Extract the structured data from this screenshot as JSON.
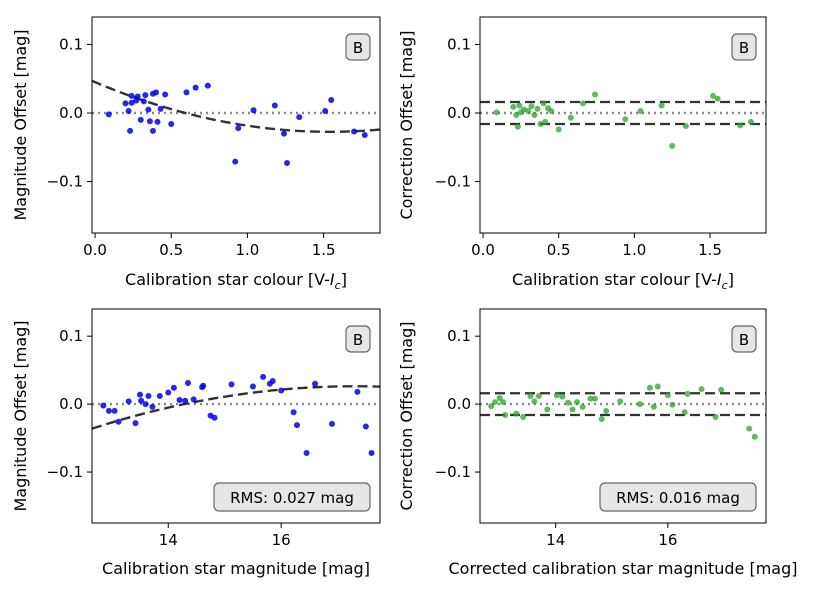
{
  "chart_data": [
    {
      "type": "scatter",
      "panel": "top-left",
      "badge": "B",
      "xlabel": "Calibration star colour [V-",
      "xlabel_italic": "I",
      "xlabel_sub": "c",
      "xlabel_close": "]",
      "ylabel": "Magnitude Offset [mag]",
      "xlim": [
        -0.02,
        1.87
      ],
      "ylim": [
        -0.175,
        0.14
      ],
      "xticks": [
        0.0,
        0.5,
        1.0,
        1.5
      ],
      "xtick_labels": [
        "0.0",
        "0.5",
        "1.0",
        "1.5"
      ],
      "yticks": [
        0.1,
        0.0,
        -0.1
      ],
      "ytick_labels": [
        "0.1",
        "0.0",
        "−0.1"
      ],
      "point_color": "#0000ee",
      "x": [
        0.09,
        0.2,
        0.22,
        0.23,
        0.24,
        0.24,
        0.27,
        0.28,
        0.3,
        0.32,
        0.33,
        0.35,
        0.36,
        0.38,
        0.38,
        0.4,
        0.41,
        0.43,
        0.46,
        0.5,
        0.6,
        0.66,
        0.74,
        0.92,
        0.94,
        1.04,
        1.18,
        1.24,
        1.26,
        1.34,
        1.51,
        1.55,
        1.7,
        1.77
      ],
      "y": [
        -0.002,
        0.014,
        0.003,
        -0.026,
        0.025,
        0.015,
        0.018,
        0.024,
        -0.01,
        0.017,
        0.026,
        0.005,
        -0.012,
        -0.026,
        0.028,
        0.03,
        -0.013,
        0.006,
        0.027,
        -0.016,
        0.03,
        0.037,
        0.04,
        -0.071,
        -0.022,
        0.004,
        0.011,
        -0.03,
        -0.073,
        -0.006,
        0.003,
        0.019,
        -0.027,
        -0.032
      ],
      "fit_curve": {
        "coeffs": [
          0.045,
          -0.094,
          0.0305
        ],
        "color": "#333333",
        "style": "dashed"
      },
      "reference_lines": [
        {
          "y": 0.0,
          "color": "#888888",
          "style": "dotted"
        }
      ]
    },
    {
      "type": "scatter",
      "panel": "top-right",
      "badge": "B",
      "xlabel": "Calibration star colour [V-",
      "xlabel_italic": "I",
      "xlabel_sub": "c",
      "xlabel_close": "]",
      "ylabel": "Correction Offset [mag]",
      "xlim": [
        -0.02,
        1.87
      ],
      "ylim": [
        -0.175,
        0.14
      ],
      "xticks": [
        0.0,
        0.5,
        1.0,
        1.5
      ],
      "xtick_labels": [
        "0.0",
        "0.5",
        "1.0",
        "1.5"
      ],
      "yticks": [
        0.1,
        0.0,
        -0.1
      ],
      "ytick_labels": [
        "0.1",
        "0.0",
        "−0.1"
      ],
      "point_color": "#2ca02c",
      "x": [
        0.09,
        0.2,
        0.22,
        0.23,
        0.24,
        0.25,
        0.27,
        0.3,
        0.32,
        0.34,
        0.36,
        0.38,
        0.4,
        0.41,
        0.43,
        0.45,
        0.5,
        0.58,
        0.66,
        0.74,
        0.94,
        1.04,
        1.18,
        1.25,
        1.34,
        1.52,
        1.55,
        1.7,
        1.77
      ],
      "y": [
        0.001,
        0.009,
        -0.003,
        -0.02,
        0.011,
        0.001,
        0.005,
        0.003,
        0.01,
        -0.003,
        0.006,
        -0.016,
        0.014,
        -0.013,
        0.007,
        0.003,
        -0.024,
        -0.007,
        0.014,
        0.027,
        -0.009,
        0.003,
        0.011,
        -0.048,
        -0.019,
        0.025,
        0.021,
        -0.018,
        -0.013
      ],
      "reference_lines": [
        {
          "y": 0.0,
          "color": "#888888",
          "style": "dotted"
        },
        {
          "y": 0.016,
          "color": "#333333",
          "style": "dashed"
        },
        {
          "y": -0.016,
          "color": "#333333",
          "style": "dashed"
        }
      ]
    },
    {
      "type": "scatter",
      "panel": "bottom-left",
      "badge": "B",
      "rms_label": "RMS: 0.027 mag",
      "xlabel": "Calibration star magnitude [mag]",
      "ylabel": "Magnitude Offset [mag]",
      "xlim": [
        12.65,
        17.75
      ],
      "ylim": [
        -0.175,
        0.14
      ],
      "xticks": [
        14,
        16
      ],
      "xtick_labels": [
        "14",
        "16"
      ],
      "yticks": [
        0.1,
        0.0,
        -0.1
      ],
      "ytick_labels": [
        "0.1",
        "0.0",
        "−0.1"
      ],
      "point_color": "#0000ee",
      "x": [
        12.85,
        12.95,
        13.05,
        13.12,
        13.3,
        13.42,
        13.5,
        13.52,
        13.6,
        13.65,
        13.72,
        13.85,
        14.0,
        14.1,
        14.2,
        14.3,
        14.35,
        14.45,
        14.6,
        14.62,
        14.75,
        14.82,
        15.12,
        15.5,
        15.68,
        15.8,
        15.85,
        16.0,
        16.22,
        16.28,
        16.45,
        16.6,
        16.9,
        17.35,
        17.5,
        17.6
      ],
      "y": [
        -0.002,
        -0.01,
        -0.01,
        -0.026,
        0.004,
        -0.028,
        0.014,
        0.005,
        0.0,
        0.012,
        -0.004,
        0.012,
        0.017,
        0.024,
        0.006,
        0.005,
        0.031,
        0.007,
        0.025,
        0.027,
        -0.017,
        -0.02,
        0.029,
        0.026,
        0.04,
        0.03,
        0.034,
        0.02,
        -0.012,
        -0.031,
        -0.072,
        0.03,
        -0.029,
        0.018,
        -0.033,
        -0.072
      ],
      "fit_curve": {
        "coeffs": [
          -0.0361,
          0.0268,
          -0.00288
        ],
        "x_offset": 12.65,
        "color": "#333333",
        "style": "dashed"
      },
      "reference_lines": [
        {
          "y": 0.0,
          "color": "#888888",
          "style": "dotted"
        }
      ]
    },
    {
      "type": "scatter",
      "panel": "bottom-right",
      "badge": "B",
      "rms_label": "RMS: 0.016 mag",
      "xlabel": "Corrected calibration star magnitude [mag]",
      "ylabel": "Correction Offset [mag]",
      "xlim": [
        12.65,
        17.75
      ],
      "ylim": [
        -0.175,
        0.14
      ],
      "xticks": [
        14,
        16
      ],
      "xtick_labels": [
        "14",
        "16"
      ],
      "yticks": [
        0.1,
        0.0,
        -0.1
      ],
      "ytick_labels": [
        "0.1",
        "0.0",
        "−0.1"
      ],
      "point_color": "#2ca02c",
      "x": [
        12.85,
        12.92,
        13.0,
        13.06,
        13.1,
        13.3,
        13.42,
        13.55,
        13.62,
        13.7,
        13.85,
        14.02,
        14.12,
        14.22,
        14.3,
        14.38,
        14.48,
        14.62,
        14.7,
        14.82,
        14.9,
        15.15,
        15.5,
        15.68,
        15.75,
        15.82,
        16.0,
        16.08,
        16.3,
        16.35,
        16.6,
        16.85,
        16.95,
        17.45,
        17.55
      ],
      "y": [
        -0.003,
        0.003,
        0.009,
        0.003,
        -0.016,
        -0.014,
        -0.019,
        0.012,
        0.004,
        0.012,
        -0.008,
        0.013,
        0.011,
        0.002,
        -0.008,
        0.003,
        -0.004,
        0.008,
        0.008,
        -0.022,
        -0.01,
        0.004,
        0.0,
        0.024,
        -0.004,
        0.026,
        0.013,
        -0.001,
        -0.012,
        0.015,
        0.022,
        -0.019,
        0.021,
        -0.036,
        -0.048
      ],
      "reference_lines": [
        {
          "y": 0.0,
          "color": "#888888",
          "style": "dotted"
        },
        {
          "y": 0.016,
          "color": "#333333",
          "style": "dashed"
        },
        {
          "y": -0.016,
          "color": "#333333",
          "style": "dashed"
        }
      ]
    }
  ]
}
